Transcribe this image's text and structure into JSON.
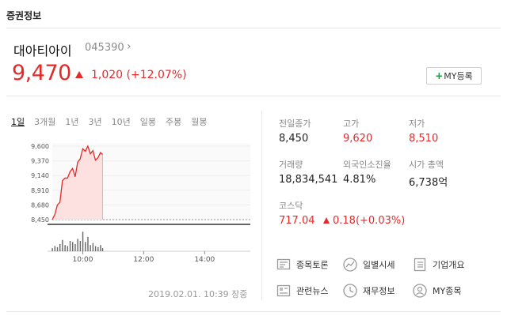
{
  "section_title": "증권정보",
  "stock": {
    "name": "대아티아이",
    "code": "045390",
    "price": "9,470",
    "change": "1,020 (+12.07%)",
    "my_button": "MY등록",
    "colors": {
      "up": "#e3292a",
      "accent_green": "#1e9b3e"
    }
  },
  "periods": [
    "1일",
    "3개월",
    "1년",
    "3년",
    "10년",
    "일봉",
    "주봉",
    "월봉"
  ],
  "active_period": "1일",
  "chart_data": {
    "type": "line",
    "title": "",
    "xlabel": "",
    "ylabel": "",
    "y_ticks": [
      "9,600",
      "9,370",
      "9,140",
      "8,910",
      "8,680",
      "8,450"
    ],
    "ylim": [
      8450,
      9600
    ],
    "x_ticks": [
      "10:00",
      "12:00",
      "14:00"
    ],
    "x": [
      "09:00",
      "09:05",
      "09:10",
      "09:15",
      "09:20",
      "09:25",
      "09:30",
      "09:35",
      "09:40",
      "09:45",
      "09:50",
      "09:55",
      "10:00",
      "10:05",
      "10:10",
      "10:15",
      "10:20",
      "10:25",
      "10:30",
      "10:35",
      "10:39"
    ],
    "series": [
      {
        "values": [
          8450,
          8530,
          8680,
          8720,
          9060,
          9100,
          9100,
          9200,
          9250,
          9120,
          9350,
          9400,
          9560,
          9520,
          9600,
          9480,
          9530,
          9380,
          9420,
          9500,
          9470
        ]
      }
    ],
    "prev_close": 8450,
    "volume": [
      0.15,
      0.25,
      0.2,
      0.35,
      0.55,
      0.3,
      0.25,
      0.5,
      0.45,
      0.35,
      0.6,
      0.5,
      0.95,
      0.45,
      0.7,
      0.3,
      0.4,
      0.25,
      0.2,
      0.3,
      0.15
    ]
  },
  "stats": [
    {
      "label": "전일종가",
      "value": "8,450",
      "red": false
    },
    {
      "label": "고가",
      "value": "9,620",
      "red": true
    },
    {
      "label": "저가",
      "value": "8,510",
      "red": true
    },
    {
      "label": "거래량",
      "value": "18,834,541",
      "red": false
    },
    {
      "label": "외국인소진율",
      "value": "4.81%",
      "red": false
    },
    {
      "label": "시가 총액",
      "value": "6,738억",
      "red": false
    }
  ],
  "kospi": {
    "label": "코스닥",
    "value": "717.04",
    "change": "0.18(+0.03%)"
  },
  "timestamp": "2019.02.01. 10:39 장중",
  "links": [
    {
      "label": "종목토론",
      "icon": "board-icon"
    },
    {
      "label": "일별시세",
      "icon": "trend-icon"
    },
    {
      "label": "기업개요",
      "icon": "list-icon"
    },
    {
      "label": "관련뉴스",
      "icon": "news-icon"
    },
    {
      "label": "재무정보",
      "icon": "clock-icon"
    },
    {
      "label": "MY종목",
      "icon": "user-icon"
    }
  ]
}
